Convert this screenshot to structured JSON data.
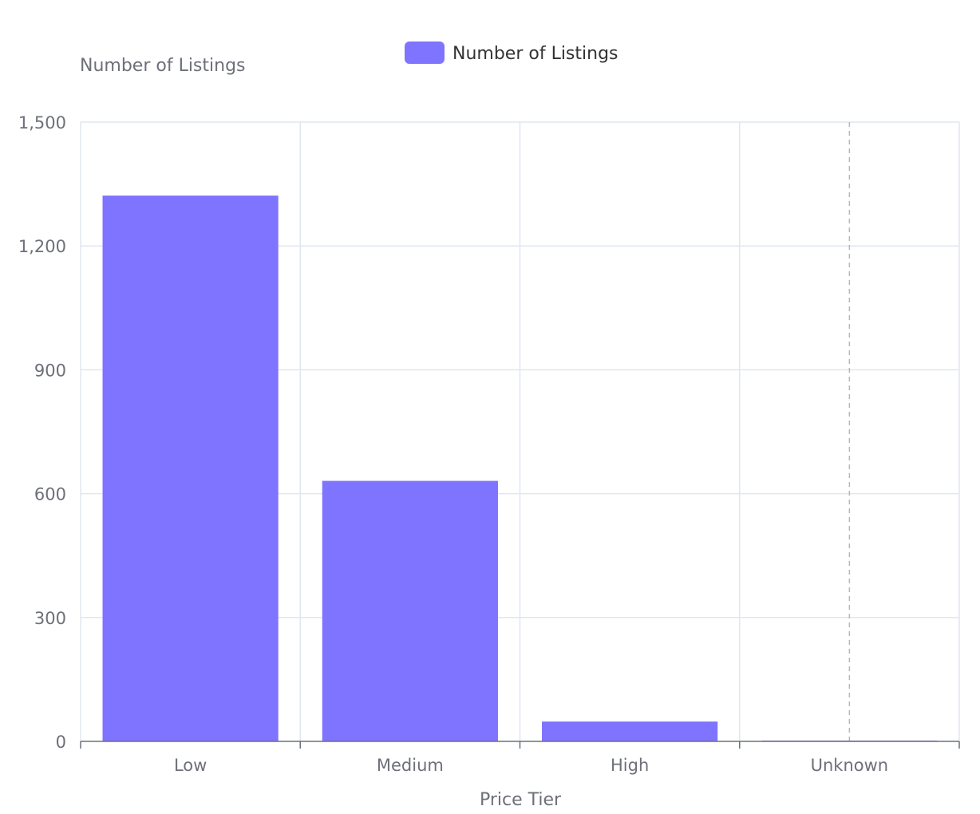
{
  "chart_data": {
    "type": "bar",
    "categories": [
      "Low",
      "Medium",
      "High",
      "Unknown"
    ],
    "series": [
      {
        "name": "Number of Listings",
        "values": [
          1322,
          631,
          48,
          2
        ],
        "color": "#7f74ff"
      }
    ],
    "xlabel": "Price Tier",
    "ylabel": "Number of Listings",
    "ylim": [
      0,
      1500
    ],
    "yticks": [
      0,
      300,
      600,
      900,
      1200,
      1500
    ],
    "ytick_labels": [
      "0",
      "300",
      "600",
      "900",
      "1,200",
      "1,500"
    ],
    "grid": true,
    "legend_position": "top-center",
    "highlight_category": "Unknown"
  }
}
